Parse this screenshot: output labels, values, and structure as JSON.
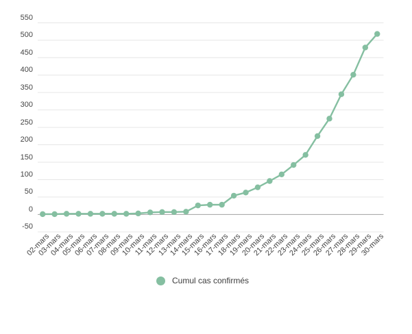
{
  "legend": {
    "label": "Cumul cas confirmés"
  },
  "colors": {
    "series": "#85bfa1",
    "gridline": "#e6e6e6",
    "zero_baseline": "#a0a0a0",
    "axis_text": "#444444",
    "legend_text": "#3c3c3c",
    "background": "#ffffff"
  },
  "chart_data": {
    "type": "line",
    "title": "",
    "xlabel": "",
    "ylabel": "",
    "x": [
      "02-mars",
      "03-mars",
      "04-mars",
      "05-mars",
      "06-mars",
      "07-mars",
      "08-mars",
      "09-mars",
      "10-mars",
      "11-mars",
      "12-mars",
      "13-mars",
      "14-mars",
      "15-mars",
      "16-mars",
      "17-mars",
      "18-mars",
      "19-mars",
      "20-mars",
      "21-mars",
      "22-mars",
      "23-mars",
      "24-mars",
      "25-mars",
      "26-mars",
      "27-mars",
      "28-mars",
      "29-mars",
      "30-mars"
    ],
    "series": [
      {
        "name": "Cumul cas confirmés",
        "color": "#85bfa1",
        "marker": "circle",
        "values": [
          1,
          1,
          2,
          2,
          2,
          2,
          2,
          2,
          3,
          6,
          7,
          7,
          8,
          26,
          28,
          28,
          54,
          63,
          78,
          96,
          115,
          142,
          171,
          225,
          275,
          345,
          401,
          479,
          518
        ]
      }
    ],
    "ylim": [
      -50,
      550
    ],
    "yticks": [
      550,
      500,
      450,
      400,
      350,
      300,
      250,
      200,
      150,
      100,
      50,
      0,
      -50
    ],
    "baseline_value": 0,
    "grid": true,
    "legend_position": "bottom"
  }
}
